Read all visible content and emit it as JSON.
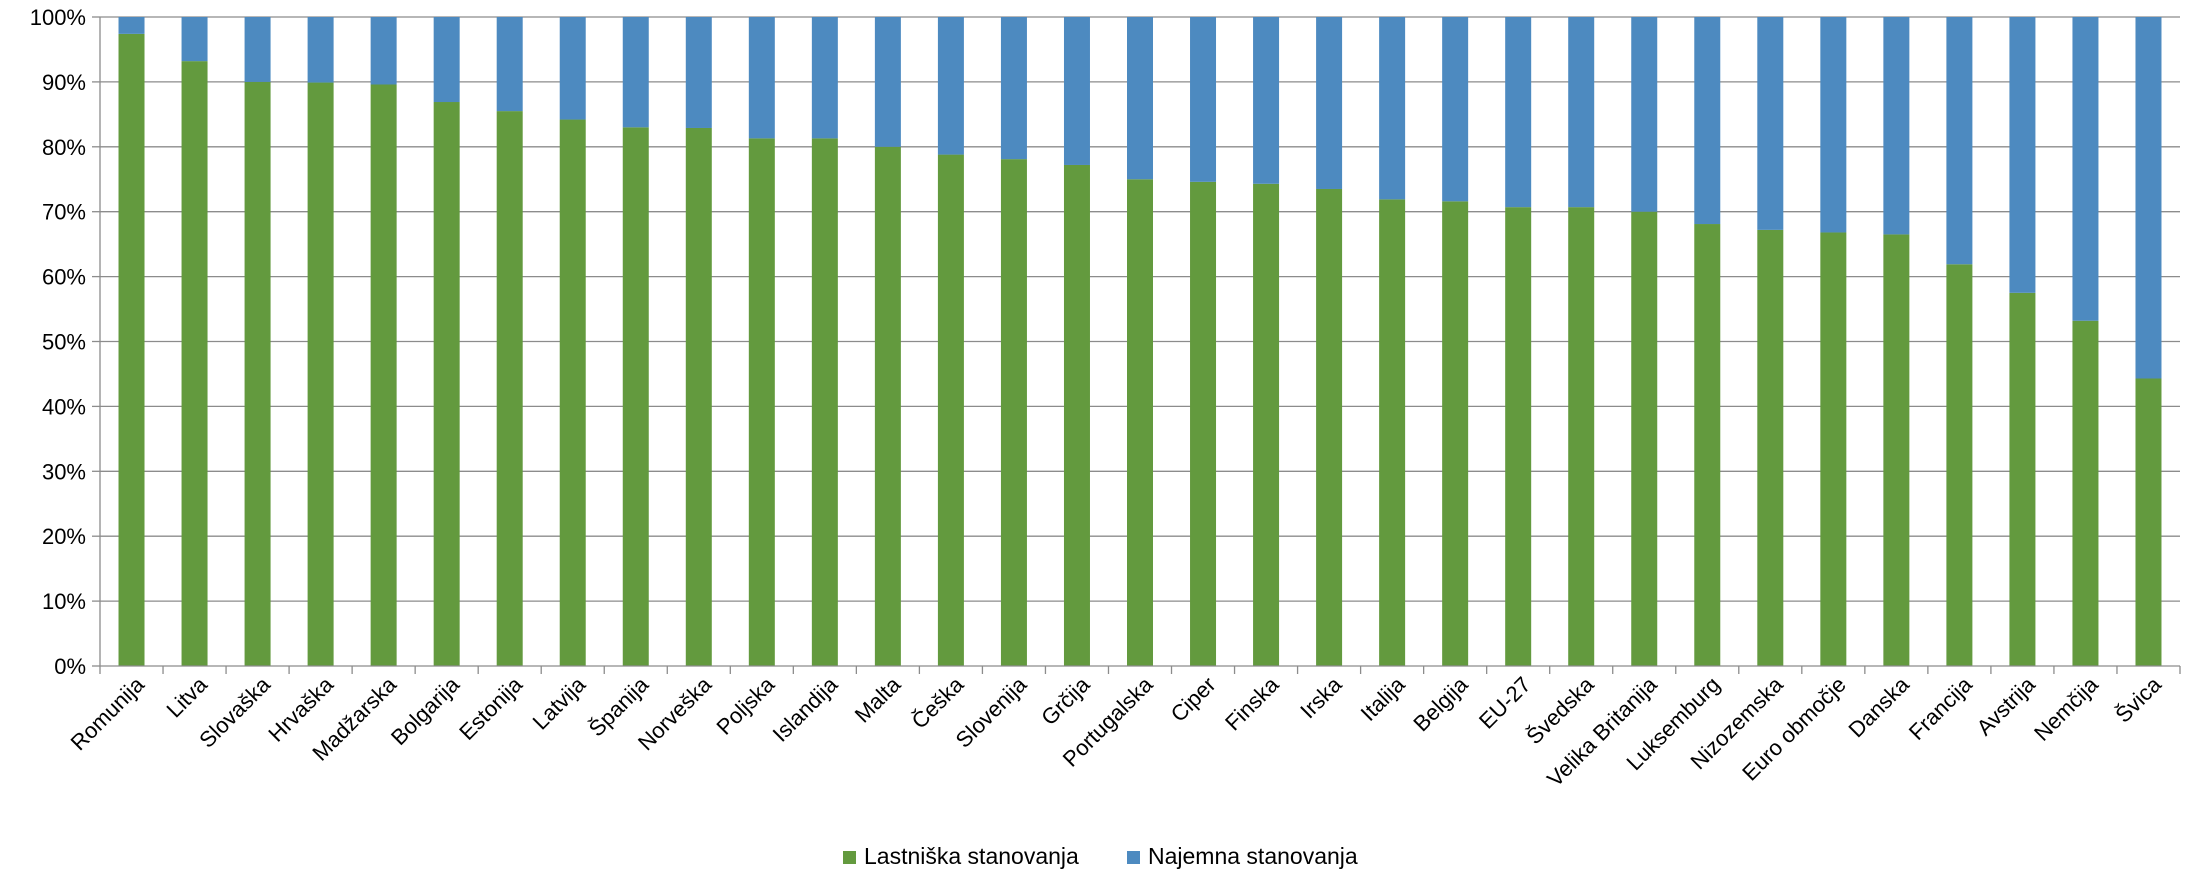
{
  "chart_data": {
    "type": "bar",
    "stacked": true,
    "percent": true,
    "categories": [
      "Romunija",
      "Litva",
      "Slovaška",
      "Hrvaška",
      "Madžarska",
      "Bolgarija",
      "Estonija",
      "Latvija",
      "Španija",
      "Norveška",
      "Poljska",
      "Islandija",
      "Malta",
      "Češka",
      "Slovenija",
      "Grčija",
      "Portugalska",
      "Ciper",
      "Finska",
      "Irska",
      "Italija",
      "Belgija",
      "EU-27",
      "Švedska",
      "Velika Britanija",
      "Luksemburg",
      "Nizozemska",
      "Euro območje",
      "Danska",
      "Francija",
      "Avstrija",
      "Nemčija",
      "Švica"
    ],
    "series": [
      {
        "name": "Lastniška stanovanja",
        "color": "#639a3e",
        "values": [
          97.4,
          93.2,
          90.0,
          89.9,
          89.6,
          86.9,
          85.5,
          84.2,
          83.0,
          82.9,
          81.3,
          81.3,
          80.0,
          78.8,
          78.1,
          77.2,
          75.0,
          74.6,
          74.3,
          73.5,
          71.9,
          71.6,
          70.7,
          70.7,
          70.0,
          68.1,
          67.2,
          66.8,
          66.5,
          61.9,
          57.5,
          53.2,
          44.3
        ]
      },
      {
        "name": "Najemna stanovanja",
        "color": "#4d8ac0",
        "values": [
          2.6,
          6.8,
          10.0,
          10.1,
          10.4,
          13.1,
          14.5,
          15.8,
          17.0,
          17.1,
          18.7,
          18.7,
          20.0,
          21.2,
          21.9,
          22.8,
          25.0,
          25.4,
          25.7,
          26.5,
          28.1,
          28.4,
          29.3,
          29.3,
          30.0,
          31.9,
          32.8,
          33.2,
          33.5,
          38.1,
          42.5,
          46.8,
          55.7
        ]
      }
    ],
    "ylim": [
      0,
      100
    ],
    "yticks": [
      "0%",
      "10%",
      "20%",
      "30%",
      "40%",
      "50%",
      "60%",
      "70%",
      "80%",
      "90%",
      "100%"
    ],
    "grid": true,
    "legend_position": "bottom",
    "gridline_color": "#8c8c8c",
    "axis_color": "#8c8c8c"
  }
}
